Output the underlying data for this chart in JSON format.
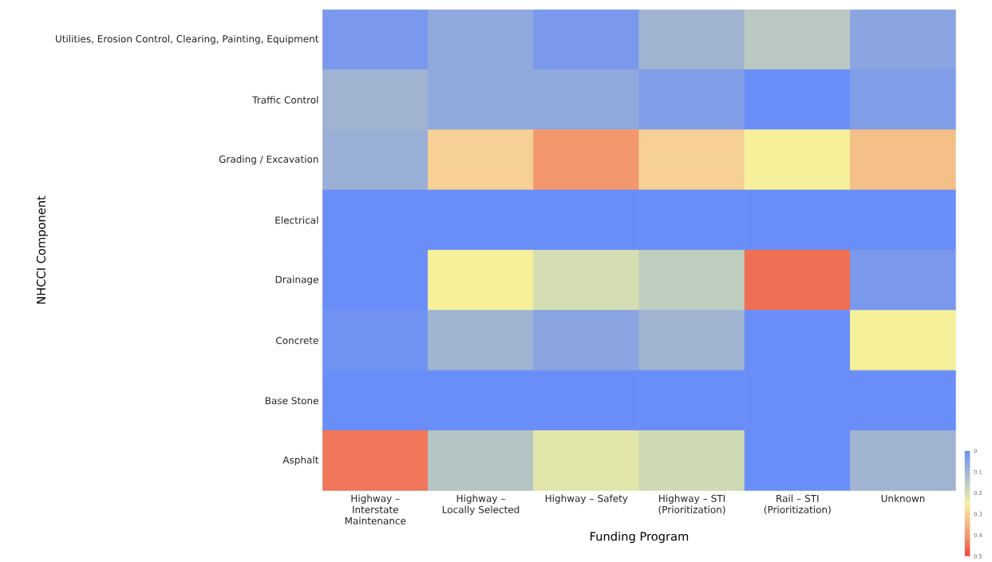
{
  "chart_data": {
    "type": "heatmap",
    "xlabel": "Funding Program",
    "ylabel": "NHCCI Component",
    "categories": [
      "Highway – Interstate Maintenance",
      "Highway – Locally Selected",
      "Highway – Safety",
      "Highway – STI (Prioritization)",
      "Rail – STI (Prioritization)",
      "Unknown"
    ],
    "y_categories": [
      "Utilities, Erosion Control, Clearing, Painting, Equipment",
      "Traffic Control",
      "Grading / Excavation",
      "Electrical",
      "Drainage",
      "Concrete",
      "Base Stone",
      "Asphalt"
    ],
    "cells": [
      [
        0.03,
        0.07,
        0.03,
        0.1,
        0.15,
        0.06
      ],
      [
        0.1,
        0.07,
        0.07,
        0.04,
        0,
        0.04
      ],
      [
        0.09,
        0.3,
        0.4,
        0.3,
        0.25,
        0.33
      ],
      [
        0,
        0,
        0,
        0,
        0,
        0
      ],
      [
        0,
        0.25,
        0.2,
        0.16,
        0.45,
        0.03
      ],
      [
        0.01,
        0.1,
        0.06,
        0.1,
        0,
        0.25
      ],
      [
        0,
        0,
        0,
        0,
        0,
        0
      ],
      [
        0.44,
        0.14,
        0.22,
        0.19,
        0,
        0.1
      ]
    ],
    "clim": [
      0,
      0.5
    ],
    "cticks": [
      0,
      0.1,
      0.2,
      0.3,
      0.4,
      0.5
    ]
  }
}
